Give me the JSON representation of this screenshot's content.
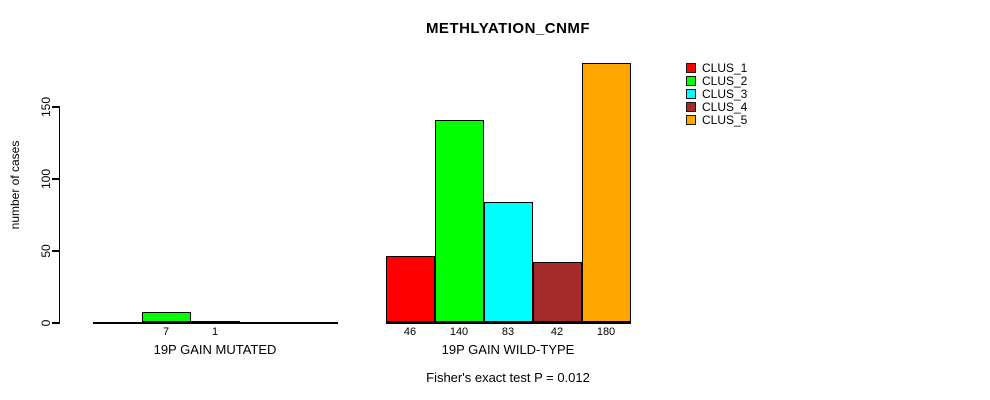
{
  "chart_data": {
    "type": "bar",
    "title": "METHLYATION_CNMF",
    "ylabel": "number of cases",
    "xlabel": "",
    "ylim": [
      0,
      185
    ],
    "yticks": [
      0,
      50,
      100,
      150
    ],
    "grid": false,
    "legend_position": "top-right",
    "series": [
      "CLUS_1",
      "CLUS_2",
      "CLUS_3",
      "CLUS_4",
      "CLUS_5"
    ],
    "colors": [
      "#FF0000",
      "#00FF00",
      "#00FFFF",
      "#A52A2A",
      "#FFA500"
    ],
    "groups": [
      {
        "label": "19P GAIN MUTATED",
        "values": [
          0,
          7,
          1,
          0,
          0
        ],
        "bar_labels": [
          "",
          "7",
          "1",
          "",
          ""
        ]
      },
      {
        "label": "19P GAIN WILD-TYPE",
        "values": [
          46,
          140,
          83,
          42,
          180
        ],
        "bar_labels": [
          "46",
          "140",
          "83",
          "42",
          "180"
        ]
      }
    ],
    "annotation": "Fisher's exact test P = 0.012"
  }
}
